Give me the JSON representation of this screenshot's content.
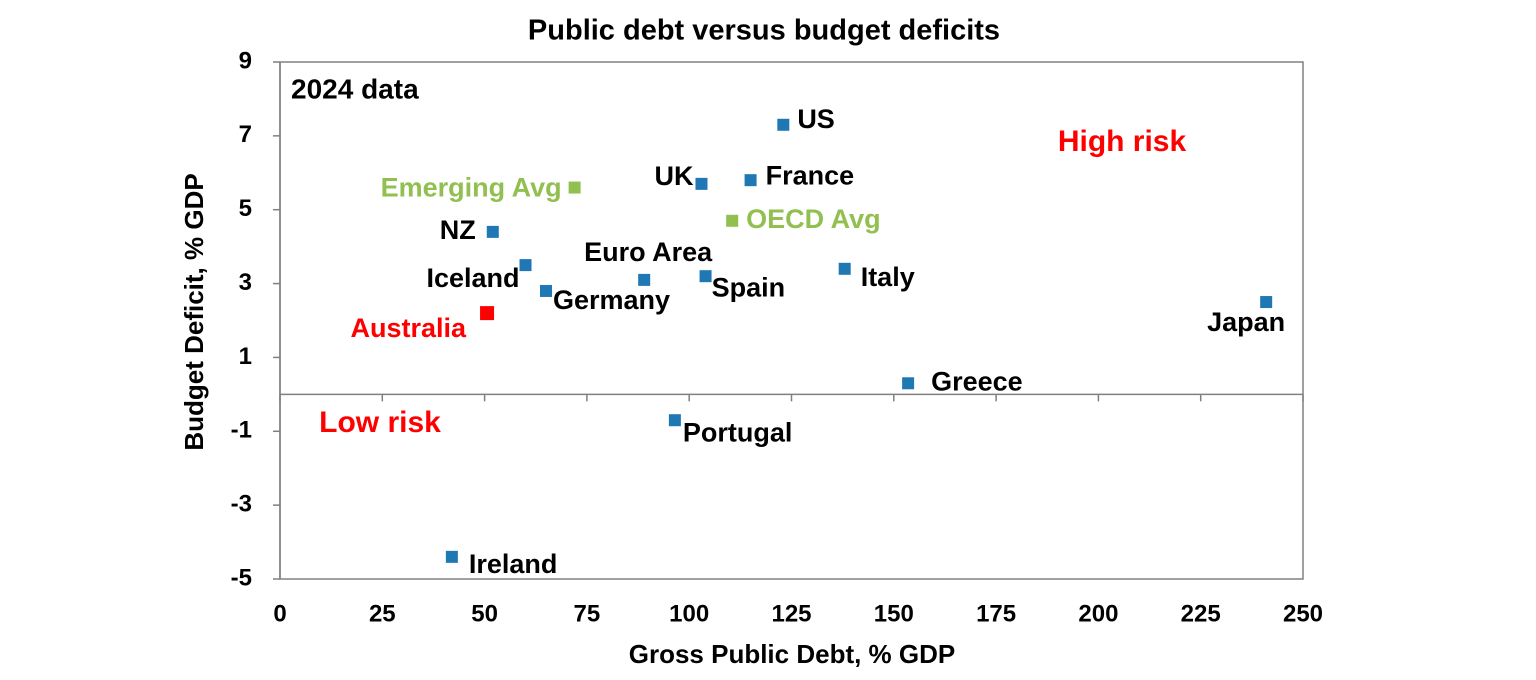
{
  "chart_data": {
    "type": "scatter",
    "title": "Public debt versus budget deficits",
    "x_label": "Gross Public Debt, % GDP",
    "y_label": "Budget Deficit, % GDP",
    "annotations": [
      {
        "text": "2024 data",
        "color": "#000000"
      },
      {
        "text": "High risk",
        "color": "#ff0000"
      },
      {
        "text": "Low risk",
        "color": "#ff0000"
      }
    ],
    "xlim": [
      0,
      250
    ],
    "xticks": [
      0,
      25,
      50,
      75,
      100,
      125,
      150,
      175,
      200,
      225,
      250
    ],
    "ylim": [
      -5,
      9
    ],
    "yticks": [
      9,
      7,
      5,
      3,
      1,
      -1,
      -3,
      -5
    ],
    "points": [
      {
        "name": "US",
        "x": 123,
        "y": 7.3,
        "color": "#1f77b4",
        "label_color": "#000000"
      },
      {
        "name": "UK",
        "x": 103,
        "y": 5.7,
        "color": "#1f77b4",
        "label_color": "#000000"
      },
      {
        "name": "France",
        "x": 115,
        "y": 5.8,
        "color": "#1f77b4",
        "label_color": "#000000"
      },
      {
        "name": "Emerging Avg",
        "x": 72,
        "y": 5.6,
        "color": "#92c050",
        "label_color": "#92c050"
      },
      {
        "name": "OECD Avg",
        "x": 110.5,
        "y": 4.7,
        "color": "#92c050",
        "label_color": "#92c050"
      },
      {
        "name": "NZ",
        "x": 52,
        "y": 4.4,
        "color": "#1f77b4",
        "label_color": "#000000"
      },
      {
        "name": "Iceland",
        "x": 60,
        "y": 3.5,
        "color": "#1f77b4",
        "label_color": "#000000"
      },
      {
        "name": "Germany",
        "x": 65,
        "y": 2.8,
        "color": "#1f77b4",
        "label_color": "#000000"
      },
      {
        "name": "Euro Area",
        "x": 89,
        "y": 3.1,
        "color": "#1f77b4",
        "label_color": "#000000"
      },
      {
        "name": "Spain",
        "x": 104,
        "y": 3.2,
        "color": "#1f77b4",
        "label_color": "#000000"
      },
      {
        "name": "Italy",
        "x": 138,
        "y": 3.4,
        "color": "#1f77b4",
        "label_color": "#000000"
      },
      {
        "name": "Japan",
        "x": 241,
        "y": 2.5,
        "color": "#1f77b4",
        "label_color": "#000000"
      },
      {
        "name": "Australia",
        "x": 50.6,
        "y": 2.2,
        "color": "#ff0000",
        "label_color": "#ff0000"
      },
      {
        "name": "Greece",
        "x": 153.5,
        "y": 0.3,
        "color": "#1f77b4",
        "label_color": "#000000"
      },
      {
        "name": "Portugal",
        "x": 96.5,
        "y": -0.7,
        "color": "#1f77b4",
        "label_color": "#000000"
      },
      {
        "name": "Ireland",
        "x": 42,
        "y": -4.4,
        "color": "#1f77b4",
        "label_color": "#000000"
      }
    ]
  }
}
